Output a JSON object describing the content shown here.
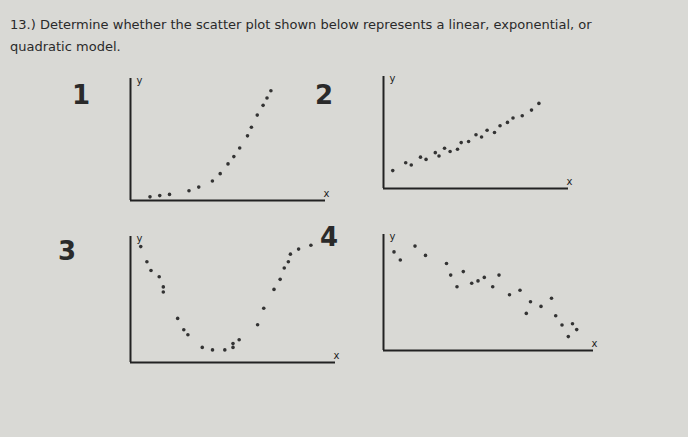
{
  "question": "13.) Determine whether the scatter plot shown below represents a linear, exponential, or quadratic model.",
  "chart_data": [
    {
      "type": "scatter",
      "title": "1",
      "xlabel": "x",
      "ylabel": "y",
      "color": "#333333",
      "tick_labels": false,
      "xlim": [
        0,
        10
      ],
      "ylim": [
        0,
        10
      ],
      "xticks": [],
      "yticks": [],
      "x": [
        1,
        1.5,
        2,
        3,
        3.5,
        4.2,
        4.6,
        5,
        5.3,
        5.6,
        6,
        6.2,
        6.5,
        6.8,
        7,
        7.2
      ],
      "values": [
        0.3,
        0.4,
        0.5,
        0.8,
        1.1,
        1.6,
        2.2,
        3,
        3.6,
        4.3,
        5.3,
        6,
        7,
        7.8,
        8.4,
        9
      ]
    },
    {
      "type": "scatter",
      "title": "2",
      "xlabel": "x",
      "ylabel": "y",
      "color": "#333333",
      "tick_labels": false,
      "xlim": [
        0,
        10
      ],
      "ylim": [
        0,
        10
      ],
      "xticks": [],
      "yticks": [],
      "x": [
        0.5,
        1.2,
        1.5,
        2,
        2.3,
        2.8,
        3,
        3.3,
        3.6,
        4,
        4.2,
        4.6,
        5,
        5.3,
        5.6,
        6,
        6.3,
        6.7,
        7,
        7.5,
        8,
        8.4
      ],
      "values": [
        1.6,
        2.3,
        2.1,
        2.8,
        2.6,
        3.2,
        2.9,
        3.6,
        3.3,
        3.5,
        4.1,
        4.2,
        4.8,
        4.6,
        5.2,
        5,
        5.6,
        5.9,
        6.3,
        6.5,
        7,
        7.6
      ]
    },
    {
      "type": "scatter",
      "title": "3",
      "xlabel": "x",
      "ylabel": "y",
      "color": "#333333",
      "tick_labels": false,
      "xlim": [
        0,
        10
      ],
      "ylim": [
        0,
        10
      ],
      "xticks": [],
      "yticks": [],
      "x": [
        0.5,
        0.8,
        1,
        1.4,
        1.6,
        1.6,
        2.3,
        2.6,
        2.8,
        3.5,
        4,
        4.6,
        5,
        5,
        5.3,
        6.2,
        6.5,
        7,
        7.3,
        7.5,
        7.7,
        7.8,
        8.2,
        8.8
      ],
      "values": [
        9.2,
        8,
        7.3,
        6.8,
        6,
        5.6,
        3.5,
        2.6,
        2.2,
        1.2,
        1,
        1,
        1.2,
        1.5,
        1.8,
        3,
        4.3,
        5.8,
        6.6,
        7.5,
        8,
        8.6,
        9,
        9.3
      ]
    },
    {
      "type": "scatter",
      "title": "4",
      "xlabel": "x",
      "ylabel": "y",
      "color": "#333333",
      "tick_labels": false,
      "xlim": [
        0,
        10
      ],
      "ylim": [
        0,
        10
      ],
      "xticks": [],
      "yticks": [],
      "x": [
        0.5,
        0.8,
        1.5,
        2,
        3,
        3.2,
        3.5,
        3.8,
        4.2,
        4.5,
        4.8,
        5.2,
        5.5,
        6,
        6.5,
        7,
        6.8,
        7.5,
        8,
        8.2,
        8.5,
        9,
        9.2,
        8.8
      ],
      "values": [
        8.5,
        7.8,
        9,
        8.2,
        7.5,
        6.5,
        5.5,
        6.8,
        5.8,
        6,
        6.3,
        5.5,
        6.5,
        4.8,
        5.2,
        4.2,
        3.2,
        3.8,
        4.5,
        3,
        2.2,
        2.3,
        1.8,
        1.2
      ]
    }
  ]
}
